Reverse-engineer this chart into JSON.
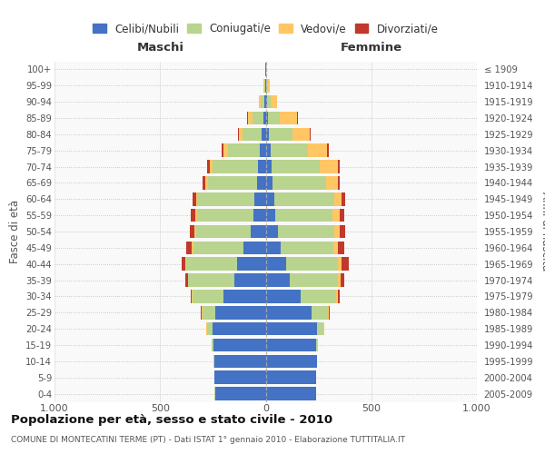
{
  "age_groups": [
    "0-4",
    "5-9",
    "10-14",
    "15-19",
    "20-24",
    "25-29",
    "30-34",
    "35-39",
    "40-44",
    "45-49",
    "50-54",
    "55-59",
    "60-64",
    "65-69",
    "70-74",
    "75-79",
    "80-84",
    "85-89",
    "90-94",
    "95-99",
    "100+"
  ],
  "birth_years": [
    "2005-2009",
    "2000-2004",
    "1995-1999",
    "1990-1994",
    "1985-1989",
    "1980-1984",
    "1975-1979",
    "1970-1974",
    "1965-1969",
    "1960-1964",
    "1955-1959",
    "1950-1954",
    "1945-1949",
    "1940-1944",
    "1935-1939",
    "1930-1934",
    "1925-1929",
    "1920-1924",
    "1915-1919",
    "1910-1914",
    "≤ 1909"
  ],
  "male_celibi": [
    240,
    242,
    245,
    248,
    252,
    238,
    200,
    148,
    135,
    105,
    72,
    58,
    52,
    42,
    38,
    28,
    18,
    12,
    8,
    3,
    2
  ],
  "male_coniugati": [
    2,
    2,
    2,
    6,
    26,
    62,
    148,
    218,
    242,
    238,
    258,
    268,
    272,
    232,
    212,
    152,
    92,
    52,
    15,
    5,
    1
  ],
  "male_vedovi": [
    0,
    0,
    0,
    2,
    2,
    2,
    2,
    3,
    4,
    6,
    6,
    6,
    6,
    12,
    16,
    22,
    16,
    22,
    8,
    2,
    0
  ],
  "male_divorziati": [
    0,
    0,
    0,
    2,
    2,
    4,
    6,
    12,
    16,
    28,
    22,
    22,
    16,
    12,
    12,
    6,
    4,
    2,
    0,
    0,
    0
  ],
  "fem_nubili": [
    237,
    237,
    242,
    238,
    242,
    218,
    166,
    116,
    96,
    72,
    56,
    46,
    42,
    32,
    26,
    22,
    16,
    12,
    8,
    3,
    2
  ],
  "fem_coniugate": [
    2,
    2,
    2,
    6,
    32,
    76,
    168,
    228,
    248,
    248,
    268,
    272,
    282,
    252,
    232,
    178,
    112,
    56,
    15,
    5,
    1
  ],
  "fem_vedove": [
    0,
    0,
    0,
    2,
    2,
    4,
    6,
    12,
    16,
    22,
    26,
    32,
    36,
    56,
    82,
    92,
    82,
    82,
    32,
    10,
    1
  ],
  "fem_divorziate": [
    0,
    0,
    0,
    2,
    2,
    6,
    12,
    16,
    32,
    32,
    26,
    22,
    16,
    12,
    12,
    6,
    4,
    2,
    0,
    0,
    0
  ],
  "col_celibi": "#4472c4",
  "col_coniugati": "#b8d48e",
  "col_vedovi": "#ffc663",
  "col_divorziati": "#c0392b",
  "xlim": 1000,
  "title1": "Popolazione per età, sesso e stato civile - 2010",
  "title2": "COMUNE DI MONTECATINI TERME (PT) - Dati ISTAT 1° gennaio 2010 - Elaborazione TUTTITALIA.IT",
  "legend_labels": [
    "Celibi/Nubili",
    "Coniugati/e",
    "Vedovi/e",
    "Divorziati/e"
  ]
}
